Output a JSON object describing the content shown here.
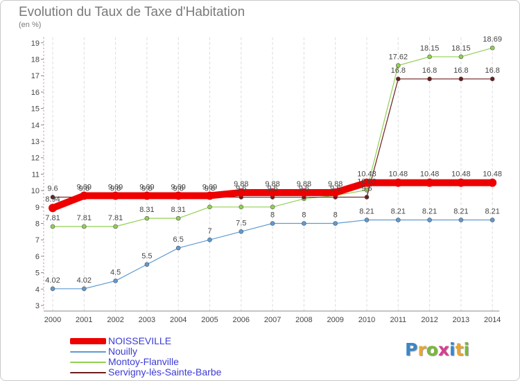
{
  "chart_data": {
    "type": "line",
    "title": "Evolution du Taux de Taxe d'Habitation",
    "unit_label": "(en %)",
    "x": [
      "2000",
      "2001",
      "2002",
      "2003",
      "2004",
      "2005",
      "2006",
      "2007",
      "2008",
      "2009",
      "2010",
      "2011",
      "2012",
      "2013",
      "2014"
    ],
    "ylim": [
      3,
      19
    ],
    "yticks": [
      3,
      4,
      5,
      6,
      7,
      8,
      9,
      10,
      11,
      12,
      13,
      14,
      15,
      16,
      17,
      18,
      19
    ],
    "grid": "vertical",
    "legend_position": "bottom-left",
    "series": [
      {
        "name": "NOISSEVILLE",
        "color": "#ee0000",
        "values": [
          8.94,
          9.69,
          9.69,
          9.69,
          9.69,
          9.69,
          9.88,
          9.88,
          9.88,
          9.88,
          10.48,
          10.48,
          10.48,
          10.48,
          10.48
        ],
        "labels": [
          "8.94",
          "9.69",
          "9.69",
          "9.69",
          "9.69",
          "9.69",
          "9.88",
          "9.88",
          "9.88",
          "9.88",
          "10.48",
          "10.48",
          "10.48",
          "10.48",
          "10.48"
        ]
      },
      {
        "name": "Nouilly",
        "color": "#5e9ad1",
        "values": [
          4.02,
          4.02,
          4.5,
          5.5,
          6.5,
          7,
          7.5,
          8,
          8,
          8,
          8.21,
          8.21,
          8.21,
          8.21,
          8.21
        ],
        "labels": [
          "4.02",
          "4.02",
          "4.5",
          "5.5",
          "6.5",
          "7",
          "7.5",
          "8",
          "8",
          "8",
          "8.21",
          "8.21",
          "8.21",
          "8.21",
          "8.21"
        ]
      },
      {
        "name": "Montoy-Flanville",
        "color": "#92d050",
        "values": [
          7.81,
          7.81,
          7.81,
          8.31,
          8.31,
          9,
          9,
          9,
          9.5,
          9.7,
          10.03,
          17.62,
          18.15,
          18.15,
          18.69
        ],
        "labels": [
          "7.81",
          "7.81",
          "7.81",
          "8.31",
          "8.31",
          "",
          "",
          "",
          "",
          "",
          "10.03",
          "17.62",
          "18.15",
          "18.15",
          "18.69"
        ]
      },
      {
        "name": "Servigny-lès-Sainte-Barbe",
        "color": "#6b1c1c",
        "values": [
          9.6,
          9.6,
          9.6,
          9.6,
          9.6,
          9.6,
          9.6,
          9.6,
          9.6,
          9.6,
          9.6,
          16.8,
          16.8,
          16.8,
          16.8
        ],
        "labels": [
          "9.6",
          "9.6",
          "9.6",
          "9.6",
          "9.6",
          "9.6",
          "9.6",
          "9.6",
          "9.6",
          "9.6",
          "9.6",
          "16.8",
          "16.8",
          "16.8",
          "16.8"
        ]
      }
    ]
  },
  "brand": {
    "letters": [
      "P",
      "r",
      "o",
      "x",
      "i",
      "t",
      "i"
    ],
    "colors": [
      "#3a86c8",
      "#e9a72e",
      "#79b83a",
      "#d63e8f",
      "#3a86c8",
      "#e9a72e",
      "#79b83a"
    ]
  }
}
